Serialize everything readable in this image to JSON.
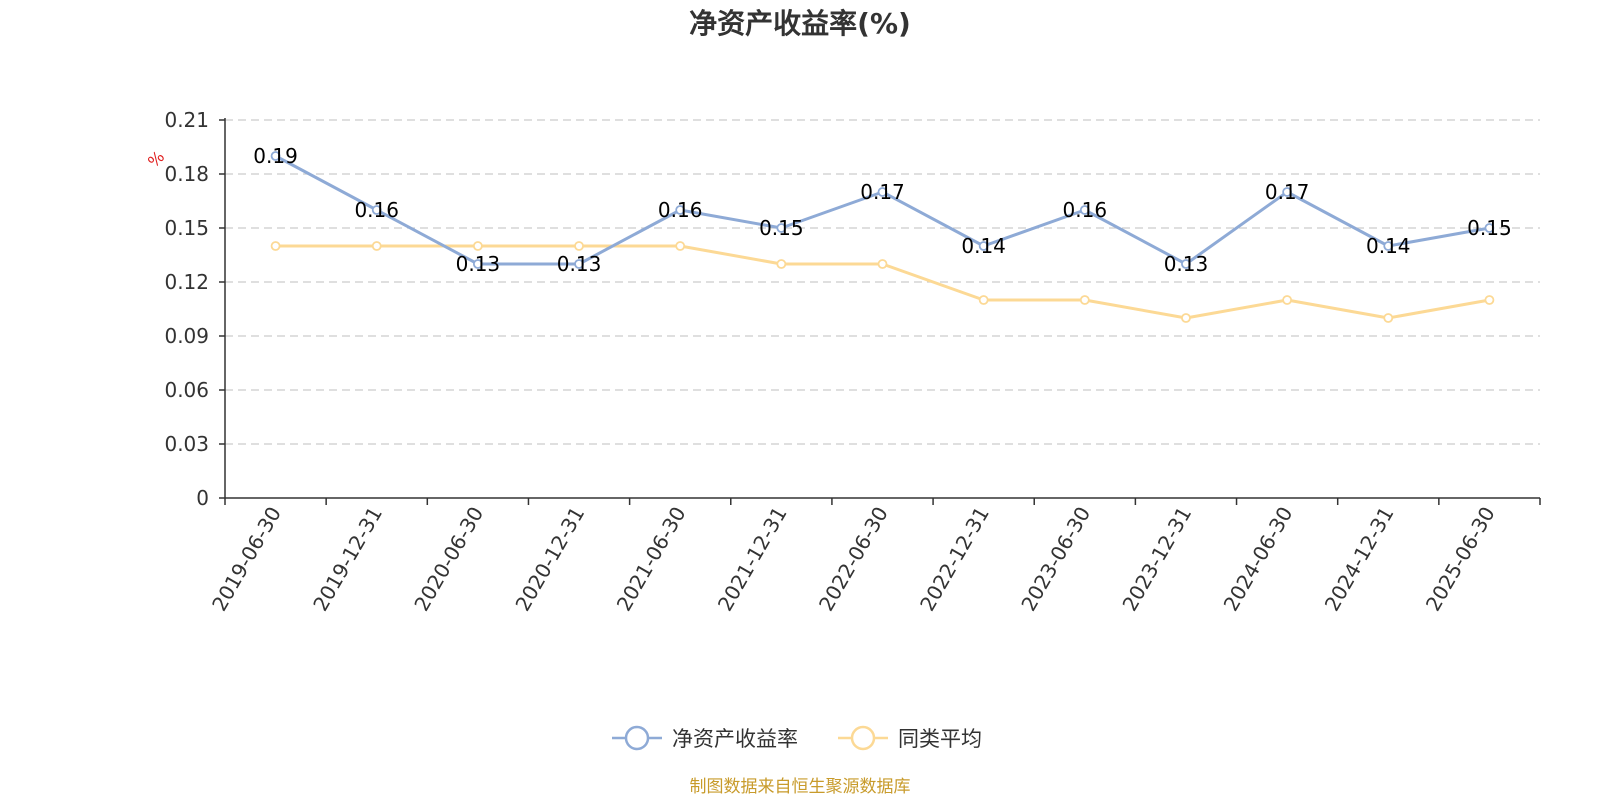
{
  "chart_data": {
    "type": "line",
    "title": "净资产收益率(%)",
    "ylabel": "%",
    "xlabel": "",
    "categories": [
      "2019-06-30",
      "2019-12-31",
      "2020-06-30",
      "2020-12-31",
      "2021-06-30",
      "2021-12-31",
      "2022-06-30",
      "2022-12-31",
      "2023-06-30",
      "2023-12-31",
      "2024-06-30",
      "2024-12-31",
      "2025-06-30"
    ],
    "ylim": [
      0,
      0.21
    ],
    "yticks": [
      "0",
      "0.03",
      "0.06",
      "0.09",
      "0.12",
      "0.15",
      "0.18",
      "0.21"
    ],
    "grid": true,
    "legend_position": "bottom",
    "series": [
      {
        "name": "净资产收益率",
        "color": "#8eaad6",
        "values": [
          0.19,
          0.16,
          0.13,
          0.13,
          0.16,
          0.15,
          0.17,
          0.14,
          0.16,
          0.13,
          0.17,
          0.14,
          0.15
        ],
        "labels": [
          "0.19",
          "0.16",
          "0.13",
          "0.13",
          "0.16",
          "0.15",
          "0.17",
          "0.14",
          "0.16",
          "0.13",
          "0.17",
          "0.14",
          "0.15"
        ]
      },
      {
        "name": "同类平均",
        "color": "#fcd995",
        "values": [
          0.14,
          0.14,
          0.14,
          0.14,
          0.14,
          0.13,
          0.13,
          0.11,
          0.11,
          0.1,
          0.11,
          0.1,
          0.11
        ]
      }
    ],
    "source_note": "制图数据来自恒生聚源数据库",
    "source_color": "#c89b2b",
    "unit_color": "#e02020"
  }
}
